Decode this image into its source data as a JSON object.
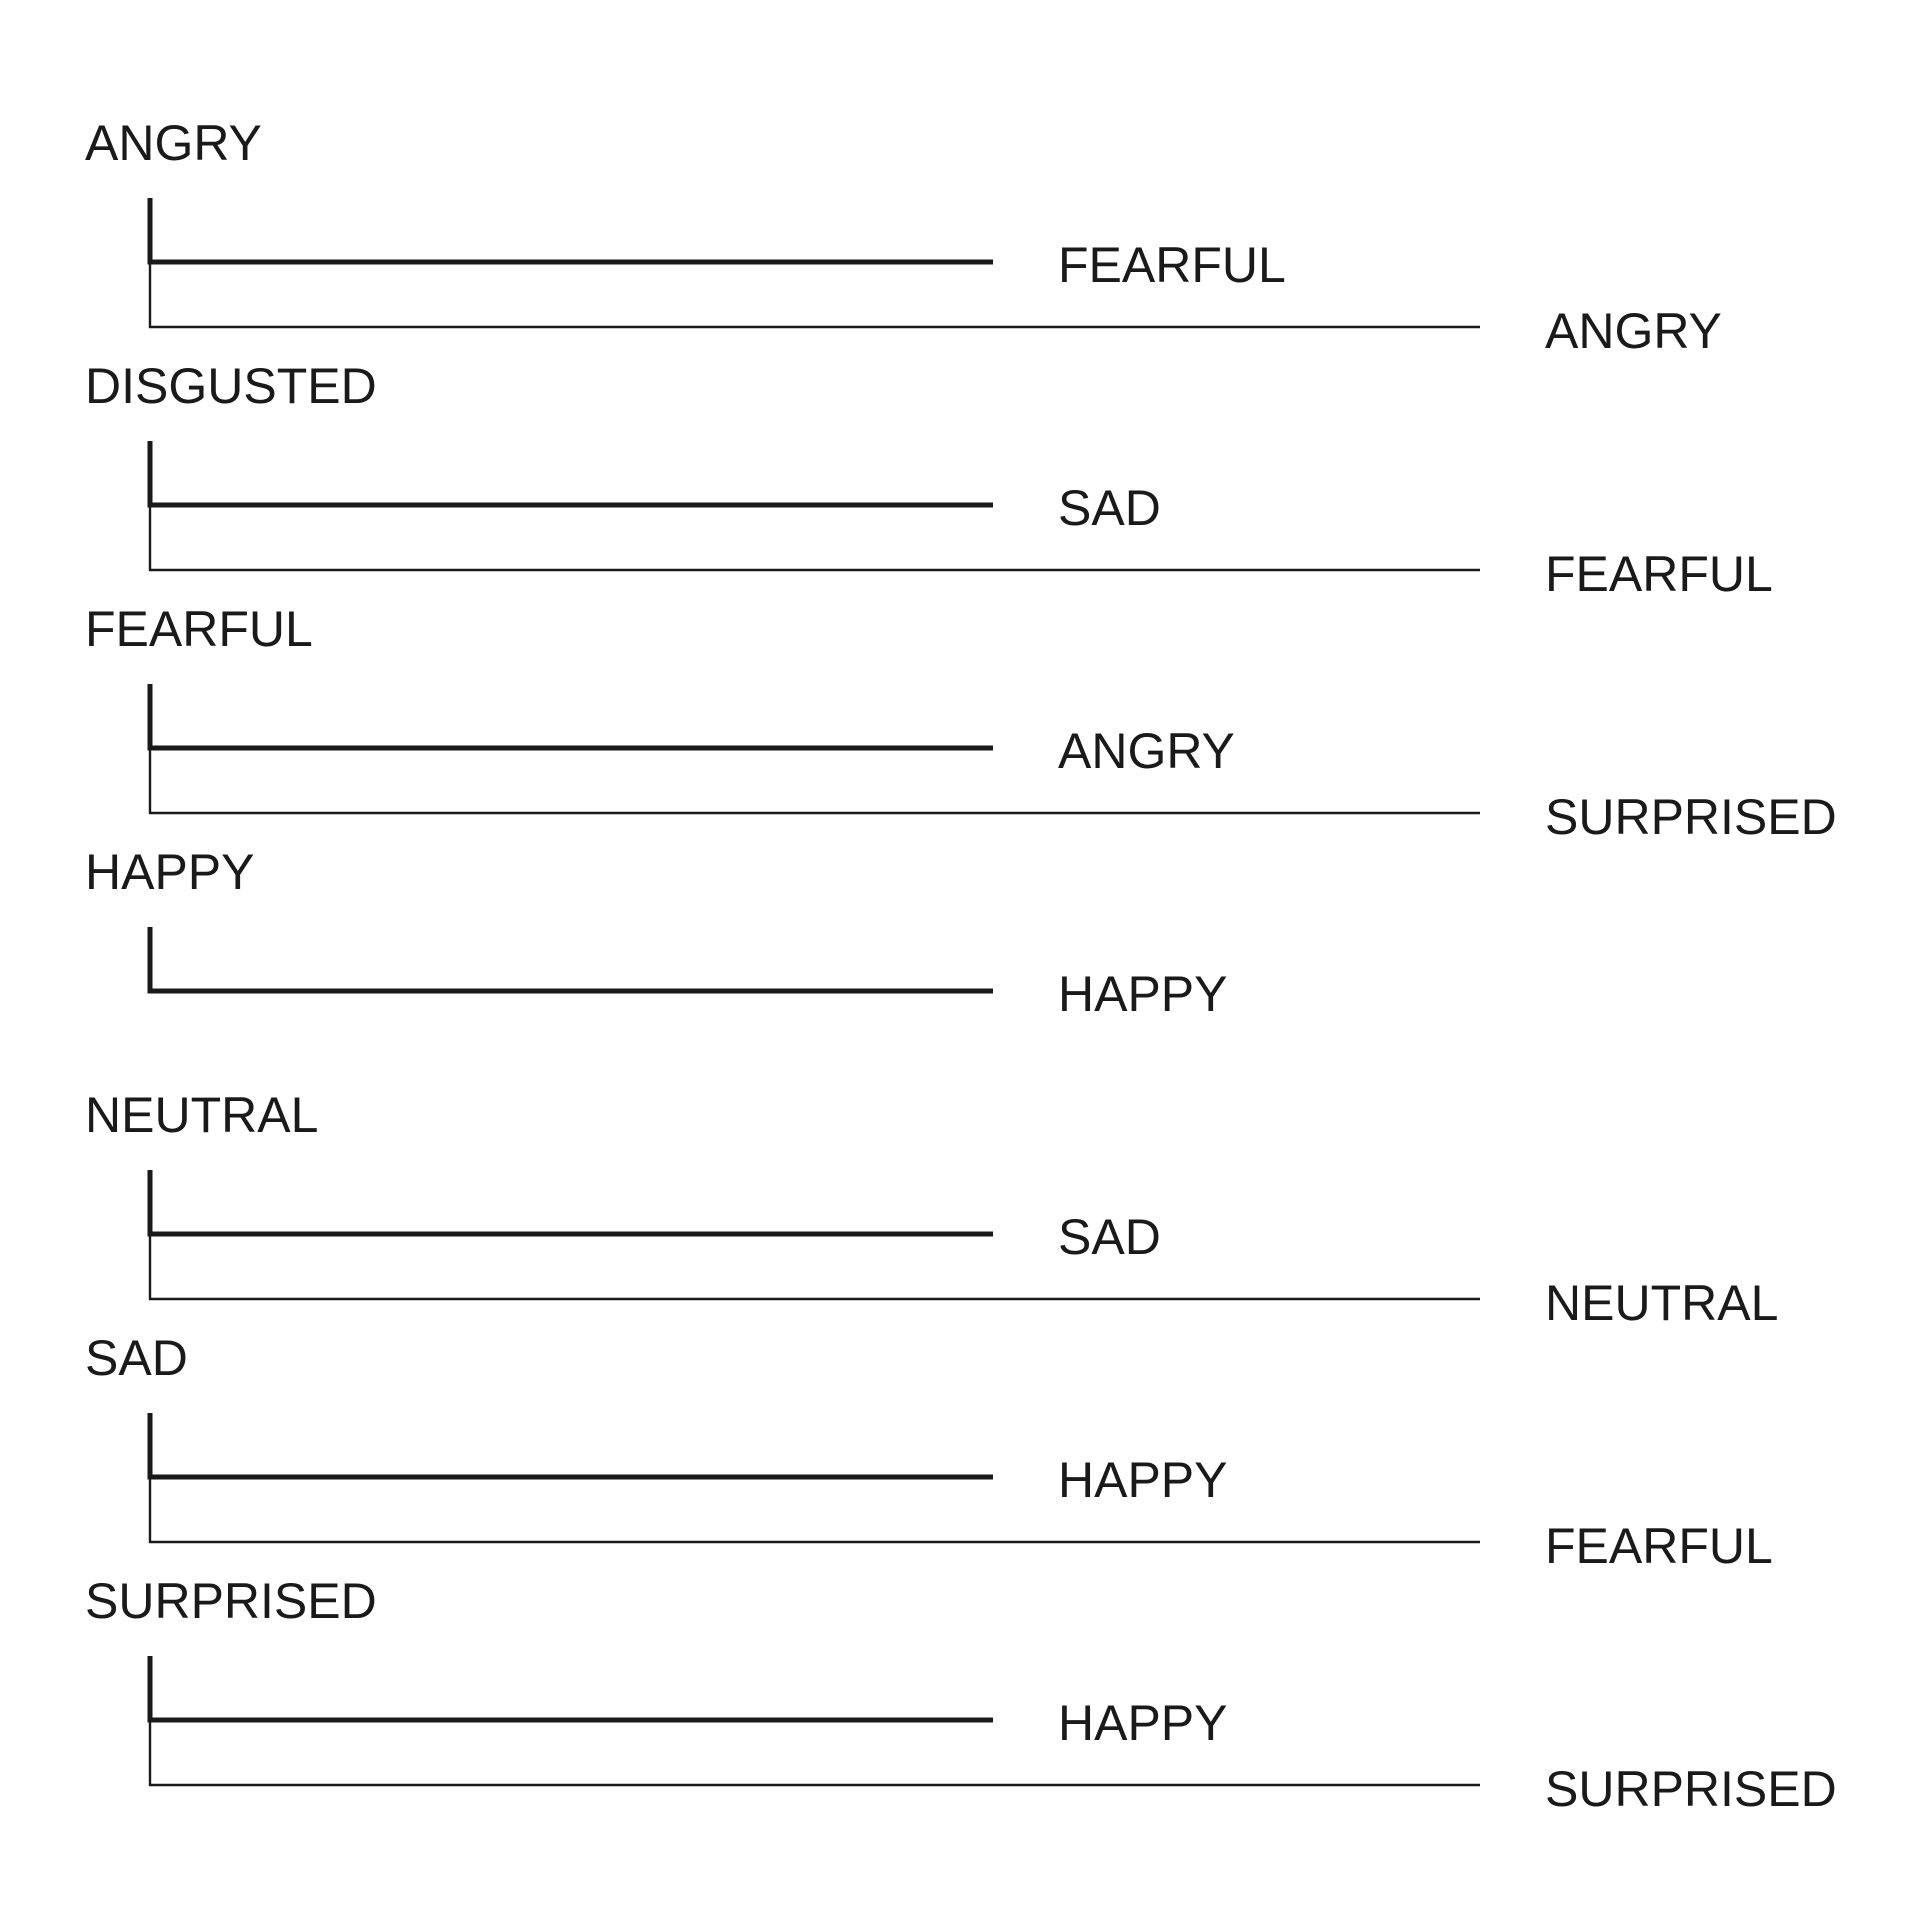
{
  "groups": [
    {
      "label": "ANGRY",
      "first": "FEARFUL",
      "second": "ANGRY"
    },
    {
      "label": "DISGUSTED",
      "first": "SAD",
      "second": "FEARFUL"
    },
    {
      "label": "FEARFUL",
      "first": "ANGRY",
      "second": "SURPRISED"
    },
    {
      "label": "HAPPY",
      "first": "HAPPY",
      "second": ""
    },
    {
      "label": "NEUTRAL",
      "first": "SAD",
      "second": "NEUTRAL"
    },
    {
      "label": "SAD",
      "first": "HAPPY",
      "second": "FEARFUL"
    },
    {
      "label": "SURPRISED",
      "first": "HAPPY",
      "second": "SURPRISED"
    }
  ]
}
